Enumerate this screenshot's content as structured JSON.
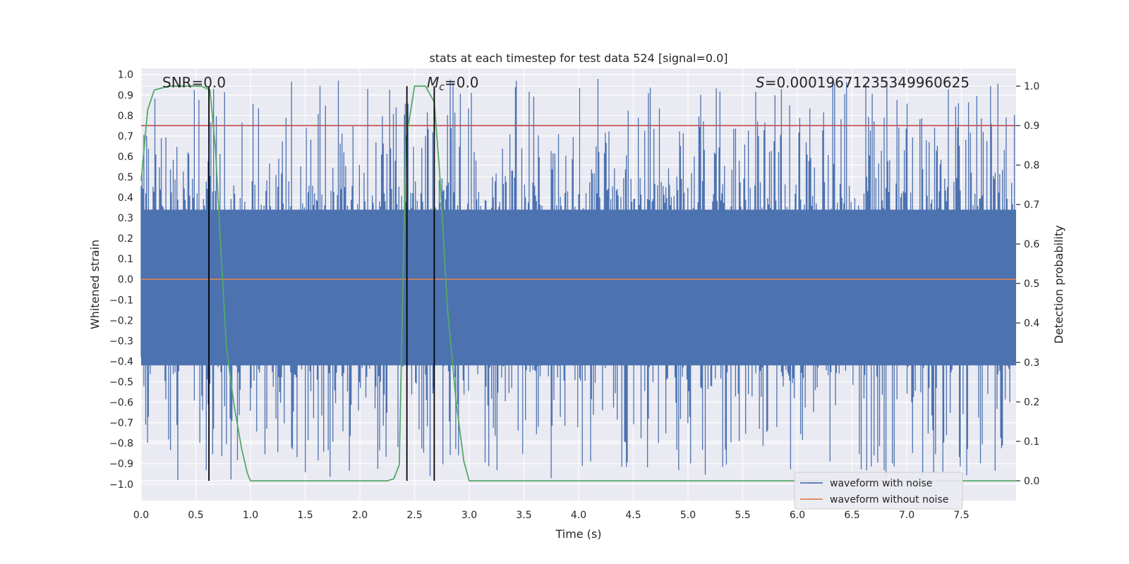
{
  "chart_data": {
    "type": "line",
    "title": "stats at each timestep for test data 524 [signal=0.0]",
    "xlabel": "Time (s)",
    "ylabel_left": "Whitened strain",
    "ylabel_right": "Detection probability",
    "xlim": [
      0,
      8
    ],
    "ylim_left": [
      -1.08,
      1.03
    ],
    "ylim_right": [
      -0.05,
      1.045
    ],
    "x_ticks": [
      "0.0",
      "0.5",
      "1.0",
      "1.5",
      "2.0",
      "2.5",
      "3.0",
      "3.5",
      "4.0",
      "4.5",
      "5.0",
      "5.5",
      "6.0",
      "6.5",
      "7.0",
      "7.5"
    ],
    "y_ticks_left": [
      "1.0",
      "0.9",
      "0.8",
      "0.7",
      "0.6",
      "0.5",
      "0.4",
      "0.3",
      "0.2",
      "0.1",
      "0.0",
      "−0.1",
      "−0.2",
      "−0.3",
      "−0.4",
      "−0.5",
      "−0.6",
      "−0.7",
      "−0.8",
      "−0.9",
      "−1.0"
    ],
    "y_ticks_right": [
      "1.0",
      "0.9",
      "0.8",
      "0.7",
      "0.6",
      "0.5",
      "0.4",
      "0.3",
      "0.2",
      "0.1",
      "0.0"
    ],
    "annotations": {
      "snr": "SNR=0.0",
      "mc_symbol": "M",
      "mc_sub": "c",
      "mc_value": "=0.0",
      "s_symbol": "S",
      "s_value": "=0.00019671235349960625"
    },
    "threshold_right": 0.9,
    "vertical_lines_x": [
      0.62,
      2.43,
      2.68
    ],
    "noise_band": {
      "core_low": -0.42,
      "core_high": 0.34,
      "max_abs": 0.98,
      "seed": 524
    },
    "series": [
      {
        "name": "waveform with noise",
        "axis": "left",
        "color": "#4c72b0",
        "note": "dense noisy strain, sampled"
      },
      {
        "name": "waveform without noise",
        "axis": "left",
        "color": "#dd8452",
        "x": [
          0,
          8
        ],
        "values": [
          0,
          0
        ]
      },
      {
        "name": "detection probability",
        "axis": "right",
        "color": "#55a868",
        "x": [
          0.0,
          0.06,
          0.12,
          0.25,
          0.4,
          0.55,
          0.63,
          0.68,
          0.73,
          0.78,
          0.85,
          0.92,
          0.97,
          1.0,
          1.5,
          2.0,
          2.25,
          2.31,
          2.36,
          2.42,
          2.5,
          2.6,
          2.68,
          2.73,
          2.8,
          2.88,
          2.95,
          3.0,
          8.0
        ],
        "values": [
          0.76,
          0.94,
          0.99,
          1.0,
          1.0,
          1.0,
          0.99,
          0.84,
          0.58,
          0.34,
          0.19,
          0.08,
          0.02,
          0.0,
          0.0,
          0.0,
          0.0,
          0.005,
          0.04,
          0.86,
          1.0,
          1.0,
          0.96,
          0.78,
          0.44,
          0.2,
          0.05,
          0.0,
          0.0
        ]
      },
      {
        "name": "threshold",
        "axis": "right",
        "color": "#c44e52",
        "x": [
          0,
          8
        ],
        "values": [
          0.9,
          0.9
        ]
      }
    ],
    "legend": {
      "position": "lower-right",
      "entries": [
        {
          "label": "waveform with noise",
          "color": "#4c72b0"
        },
        {
          "label": "waveform without noise",
          "color": "#dd8452"
        }
      ]
    }
  }
}
